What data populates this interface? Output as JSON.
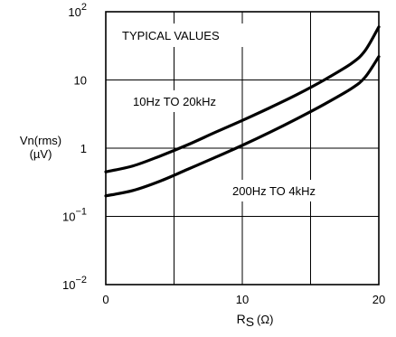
{
  "chart_data": {
    "type": "line",
    "title": "",
    "xlabel": "RS (Ω)",
    "xlabel_main": "R",
    "xlabel_sub": "S",
    "xlabel_unit": "(Ω)",
    "ylabel": "Vn(rms) (µV)",
    "ylabel_line1": "Vn(rms)",
    "ylabel_line2": "(µV)",
    "xlim": [
      0,
      20
    ],
    "ylim": [
      0.01,
      100
    ],
    "yscale": "log",
    "grid": true,
    "x_ticks": [
      "0",
      "10",
      "20"
    ],
    "y_ticks": [
      {
        "value": 100,
        "base": "10",
        "exp": "2"
      },
      {
        "value": 10,
        "base": "10",
        "exp": ""
      },
      {
        "value": 1,
        "base": "1",
        "exp": ""
      },
      {
        "value": 0.1,
        "base": "10",
        "exp": "−1"
      },
      {
        "value": 0.01,
        "base": "10",
        "exp": "−2"
      }
    ],
    "annotations": [
      "TYPICAL VALUES",
      "10Hz TO 20kHz",
      "200Hz TO 4kHz"
    ],
    "series": [
      {
        "name": "10Hz TO 20kHz",
        "x": [
          0,
          2,
          4,
          6,
          8,
          10,
          12,
          14,
          16,
          18,
          19,
          20
        ],
        "y": [
          0.45,
          0.55,
          0.77,
          1.12,
          1.7,
          2.55,
          3.9,
          6.1,
          10.0,
          17.5,
          27.0,
          60.0
        ]
      },
      {
        "name": "200Hz TO 4kHz",
        "x": [
          0,
          2,
          4,
          6,
          8,
          10,
          12,
          14,
          16,
          18,
          19,
          20
        ],
        "y": [
          0.2,
          0.24,
          0.33,
          0.49,
          0.73,
          1.1,
          1.7,
          2.7,
          4.4,
          7.5,
          11.0,
          22.0
        ]
      }
    ]
  }
}
